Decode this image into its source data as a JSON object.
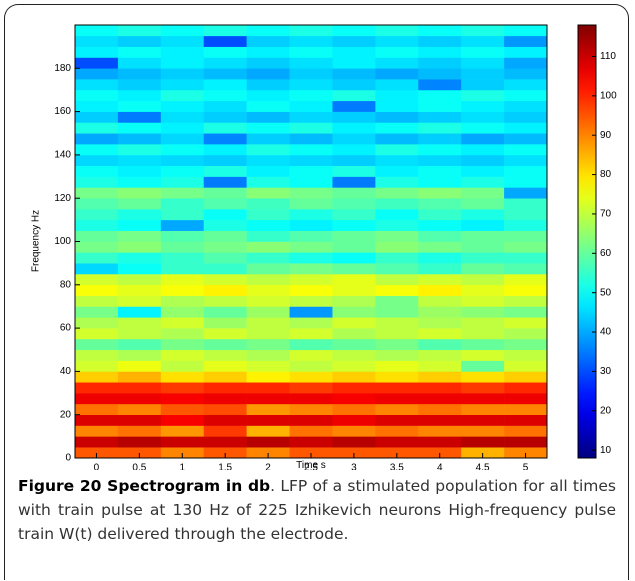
{
  "chart_data": {
    "type": "heatmap",
    "xlabel": "Time s",
    "ylabel": "Frequency Hz",
    "x": [
      0,
      0.5,
      1,
      1.5,
      2,
      2.5,
      3,
      3.5,
      4,
      4.5,
      5
    ],
    "y_bins": [
      0,
      5,
      10,
      15,
      20,
      25,
      30,
      35,
      40,
      45,
      50,
      55,
      60,
      65,
      70,
      75,
      80,
      85,
      90,
      95,
      100,
      105,
      110,
      115,
      120,
      125,
      130,
      135,
      140,
      145,
      150,
      155,
      160,
      165,
      170,
      175,
      180,
      185,
      190,
      195,
      200
    ],
    "z": [
      [
        95,
        95,
        90,
        95,
        90,
        95,
        95,
        95,
        95,
        85,
        90
      ],
      [
        110,
        112,
        110,
        110,
        112,
        110,
        112,
        110,
        110,
        112,
        112
      ],
      [
        90,
        92,
        88,
        98,
        85,
        92,
        90,
        92,
        90,
        90,
        92
      ],
      [
        108,
        108,
        105,
        108,
        108,
        108,
        106,
        108,
        108,
        108,
        108
      ],
      [
        92,
        90,
        95,
        96,
        88,
        90,
        92,
        90,
        92,
        90,
        90
      ],
      [
        106,
        106,
        105,
        106,
        106,
        106,
        105,
        106,
        106,
        106,
        106
      ],
      [
        100,
        100,
        98,
        100,
        100,
        98,
        100,
        100,
        100,
        98,
        100
      ],
      [
        82,
        85,
        80,
        82,
        78,
        80,
        82,
        80,
        82,
        80,
        82
      ],
      [
        72,
        75,
        70,
        74,
        72,
        70,
        72,
        74,
        72,
        60,
        72
      ],
      [
        70,
        68,
        72,
        70,
        68,
        72,
        70,
        68,
        70,
        72,
        70
      ],
      [
        60,
        58,
        62,
        60,
        62,
        58,
        60,
        62,
        58,
        60,
        62
      ],
      [
        72,
        70,
        68,
        72,
        70,
        72,
        68,
        70,
        72,
        70,
        68
      ],
      [
        68,
        70,
        72,
        66,
        70,
        68,
        72,
        70,
        68,
        70,
        72
      ],
      [
        62,
        48,
        65,
        60,
        66,
        38,
        64,
        62,
        66,
        64,
        62
      ],
      [
        70,
        72,
        68,
        70,
        72,
        70,
        68,
        62,
        70,
        72,
        70
      ],
      [
        76,
        74,
        76,
        78,
        74,
        76,
        74,
        76,
        78,
        74,
        76
      ],
      [
        72,
        70,
        74,
        72,
        70,
        72,
        74,
        70,
        72,
        70,
        74
      ],
      [
        45,
        50,
        55,
        55,
        60,
        62,
        60,
        58,
        55,
        60,
        58
      ],
      [
        55,
        52,
        55,
        58,
        55,
        52,
        50,
        55,
        52,
        55,
        55
      ],
      [
        62,
        64,
        60,
        62,
        64,
        62,
        60,
        64,
        62,
        60,
        62
      ],
      [
        60,
        62,
        58,
        60,
        55,
        58,
        60,
        62,
        58,
        60,
        60
      ],
      [
        52,
        50,
        40,
        52,
        50,
        48,
        50,
        52,
        50,
        48,
        52
      ],
      [
        55,
        52,
        55,
        50,
        55,
        52,
        55,
        50,
        55,
        52,
        55
      ],
      [
        58,
        60,
        55,
        58,
        56,
        60,
        58,
        56,
        58,
        60,
        55
      ],
      [
        62,
        64,
        62,
        60,
        64,
        62,
        60,
        62,
        64,
        62,
        40
      ],
      [
        52,
        50,
        52,
        35,
        52,
        50,
        35,
        52,
        50,
        52,
        50
      ],
      [
        50,
        48,
        50,
        52,
        48,
        50,
        52,
        48,
        50,
        48,
        50
      ],
      [
        45,
        46,
        45,
        44,
        46,
        45,
        44,
        46,
        45,
        44,
        46
      ],
      [
        50,
        52,
        50,
        48,
        52,
        50,
        48,
        52,
        50,
        48,
        50
      ],
      [
        40,
        42,
        45,
        36,
        44,
        42,
        45,
        42,
        44,
        40,
        42
      ],
      [
        52,
        50,
        48,
        52,
        50,
        52,
        48,
        50,
        52,
        50,
        48
      ],
      [
        44,
        35,
        46,
        44,
        42,
        45,
        44,
        42,
        44,
        46,
        44
      ],
      [
        48,
        50,
        48,
        46,
        50,
        48,
        35,
        48,
        50,
        48,
        46
      ],
      [
        50,
        48,
        52,
        50,
        48,
        50,
        52,
        48,
        50,
        52,
        50
      ],
      [
        46,
        44,
        46,
        48,
        44,
        46,
        44,
        46,
        36,
        44,
        46
      ],
      [
        40,
        42,
        44,
        42,
        40,
        44,
        42,
        40,
        42,
        44,
        42
      ],
      [
        30,
        46,
        48,
        46,
        44,
        46,
        48,
        46,
        44,
        46,
        40
      ],
      [
        48,
        50,
        48,
        50,
        48,
        50,
        48,
        50,
        48,
        50,
        48
      ],
      [
        46,
        44,
        46,
        30,
        44,
        46,
        44,
        46,
        44,
        46,
        38
      ],
      [
        50,
        52,
        50,
        52,
        50,
        52,
        50,
        52,
        50,
        52,
        50
      ]
    ],
    "xlim": [
      -0.25,
      5.25
    ],
    "xticks": [
      0,
      0.5,
      1,
      1.5,
      2,
      2.5,
      3,
      3.5,
      4,
      4.5,
      5
    ],
    "ylim": [
      0,
      200
    ],
    "yticks": [
      0,
      20,
      40,
      60,
      80,
      100,
      120,
      140,
      160,
      180
    ],
    "clim": [
      8,
      118
    ],
    "cticks": [
      10,
      20,
      30,
      40,
      50,
      60,
      70,
      80,
      90,
      100,
      110
    ],
    "colormap": "jet"
  },
  "caption": {
    "label": "Figure 20 Spectrogram in db",
    "text": ". LFP of a stimulated population for all times with train pulse at 130 Hz of 225 Izhikevich neurons High-frequency pulse train W(t) delivered through the electrode."
  }
}
